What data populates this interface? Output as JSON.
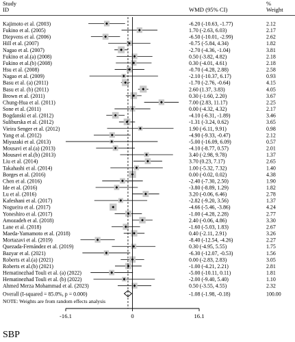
{
  "chart_data": {
    "type": "forest",
    "column_headers": {
      "study": "Study",
      "id": "ID",
      "effect": "WMD (95% CI)",
      "weight_pct": "%",
      "weight": "Weight"
    },
    "studies": [
      {
        "label": "Kajimoto et al. (2003)",
        "wmd": -6.2,
        "lo": -10.63,
        "hi": -1.77,
        "ci": "-6.20 (-10.63, -1.77)",
        "weight": "2.12",
        "w": 2.12
      },
      {
        "label": "Fukino et al. (2005)",
        "wmd": 1.7,
        "lo": -2.63,
        "hi": 6.03,
        "ci": "1.70 (-2.63, 6.03)",
        "weight": "2.17",
        "w": 2.17
      },
      {
        "label": "Diepvens et al. (2006)",
        "wmd": -6.5,
        "lo": -10.01,
        "hi": -2.99,
        "ci": "-6.50 (-10.01, -2.99)",
        "weight": "2.62",
        "w": 2.62
      },
      {
        "label": "Hill et al. (2007)",
        "wmd": -0.75,
        "lo": -5.84,
        "hi": 4.34,
        "ci": "-0.75 (-5.84, 4.34)",
        "weight": "1.82",
        "w": 1.82
      },
      {
        "label": "Nagao et al. (2007)",
        "wmd": -2.7,
        "lo": -4.36,
        "hi": -1.04,
        "ci": "-2.70 (-4.36, -1.04)",
        "weight": "3.81",
        "w": 3.81
      },
      {
        "label": "Fukino et al.(a) (2008)",
        "wmd": 0.5,
        "lo": -3.82,
        "hi": 4.82,
        "ci": "0.50 (-3.82, 4.82)",
        "weight": "2.18",
        "w": 2.18
      },
      {
        "label": "Fukino et al.(b) (2008)",
        "wmd": 0.3,
        "lo": -4.01,
        "hi": 4.61,
        "ci": "0.30 (-4.01, 4.61)",
        "weight": "2.18",
        "w": 2.18
      },
      {
        "label": "Hsu et al. (2008)",
        "wmd": -0.7,
        "lo": -4.28,
        "hi": 2.88,
        "ci": "-0.70 (-4.28, 2.88)",
        "weight": "2.58",
        "w": 2.58
      },
      {
        "label": "Nagao et al. (2009)",
        "wmd": -2.1,
        "lo": -10.37,
        "hi": 6.17,
        "ci": "-2.10 (-10.37, 6.17)",
        "weight": "0.93",
        "w": 0.93
      },
      {
        "label": "Basu et al. (a) (2011)",
        "wmd": -1.7,
        "lo": -2.76,
        "hi": -0.64,
        "ci": "-1.70 (-2.76, -0.64)",
        "weight": "4.15",
        "w": 4.15
      },
      {
        "label": "Basu et al. (b) (2011)",
        "wmd": 2.6,
        "lo": 1.37,
        "hi": 3.83,
        "ci": "2.60 (1.37, 3.83)",
        "weight": "4.05",
        "w": 4.05
      },
      {
        "label": "Brown et al. (2011)",
        "wmd": 0.3,
        "lo": -1.6,
        "hi": 2.2,
        "ci": "0.30 (-1.60, 2.20)",
        "weight": "3.67",
        "w": 3.67
      },
      {
        "label": "Chung-Hua et al. (2011)",
        "wmd": 7.0,
        "lo": 2.83,
        "hi": 11.17,
        "ci": "7.00 (2.83, 11.17)",
        "weight": "2.25",
        "w": 2.25
      },
      {
        "label": "Sone et al. (2011)",
        "wmd": 0.0,
        "lo": -4.32,
        "hi": 4.32,
        "ci": "0.00 (-4.32, 4.32)",
        "weight": "2.17",
        "w": 2.17
      },
      {
        "label": "Bogdanski et al. (2012)",
        "wmd": -4.1,
        "lo": -6.31,
        "hi": -1.89,
        "ci": "-4.10 (-6.31, -1.89)",
        "weight": "3.46",
        "w": 3.46
      },
      {
        "label": "Suliburska et al. (2012)",
        "wmd": -1.31,
        "lo": -3.24,
        "hi": 0.62,
        "ci": "-1.31 (-3.24, 0.62)",
        "weight": "3.65",
        "w": 3.65
      },
      {
        "label": "Vieira Senger et al. (2012)",
        "wmd": 1.9,
        "lo": -6.11,
        "hi": 9.91,
        "ci": "1.90 (-6.11, 9.91)",
        "weight": "0.98",
        "w": 0.98
      },
      {
        "label": "Yang et al. (2012)",
        "wmd": -4.9,
        "lo": -9.33,
        "hi": -0.47,
        "ci": "-4.90 (-9.33, -0.47)",
        "weight": "2.12",
        "w": 2.12
      },
      {
        "label": "Miyazaki et al. (2013)",
        "wmd": -5.0,
        "lo": -16.09,
        "hi": 6.09,
        "ci": "-5.00 (-16.09, 6.09)",
        "weight": "0.57",
        "w": 0.57
      },
      {
        "label": "Mousavi et al.(a) (2013)",
        "wmd": -4.1,
        "lo": -8.77,
        "hi": 0.57,
        "ci": "-4.10 (-8.77, 0.57)",
        "weight": "2.01",
        "w": 2.01
      },
      {
        "label": "Mousavi et al.(b) (2013)",
        "wmd": 3.4,
        "lo": -2.98,
        "hi": 9.78,
        "ci": "3.40 (-2.98, 9.78)",
        "weight": "1.37",
        "w": 1.37
      },
      {
        "label": "Liu et al. (2014)",
        "wmd": 3.7,
        "lo": 0.23,
        "hi": 7.17,
        "ci": "3.70 (0.23, 7.17)",
        "weight": "2.65",
        "w": 2.65
      },
      {
        "label": "Takahashi et al. (2014)",
        "wmd": 1.0,
        "lo": -5.32,
        "hi": 7.32,
        "ci": "1.00 (-5.32, 7.32)",
        "weight": "1.40",
        "w": 1.4
      },
      {
        "label": "Borges et al. (2016)",
        "wmd": 0.0,
        "lo": -0.02,
        "hi": 0.02,
        "ci": "0.00 (-0.02, 0.02)",
        "weight": "4.38",
        "w": 4.38
      },
      {
        "label": "Chen et al. (2016)",
        "wmd": -2.4,
        "lo": -7.3,
        "hi": 2.5,
        "ci": "-2.40 (-7.30, 2.50)",
        "weight": "1.90",
        "w": 1.9
      },
      {
        "label": "Ide et al. (2016)",
        "wmd": -3.8,
        "lo": -8.89,
        "hi": 1.29,
        "ci": "-3.80 (-8.89, 1.29)",
        "weight": "1.82",
        "w": 1.82
      },
      {
        "label": "Lu et al. (2016)",
        "wmd": 3.2,
        "lo": -0.06,
        "hi": 6.46,
        "ci": "3.20 (-0.06, 6.46)",
        "weight": "2.78",
        "w": 2.78
      },
      {
        "label": "Kafeshani et al. (2017)",
        "wmd": -2.82,
        "lo": -9.2,
        "hi": 3.56,
        "ci": "-2.82 (-9.20, 3.56)",
        "weight": "1.37",
        "w": 1.37
      },
      {
        "label": "Nogueira et al. (2017)",
        "wmd": -4.66,
        "lo": -5.46,
        "hi": -3.86,
        "ci": "-4.66 (-5.46, -3.86)",
        "weight": "4.24",
        "w": 4.24
      },
      {
        "label": "Yoneshiro et al. (2017)",
        "wmd": -1.0,
        "lo": -4.28,
        "hi": 2.28,
        "ci": "-1.00 (-4.28, 2.28)",
        "weight": "2.77",
        "w": 2.77
      },
      {
        "label": "Amozadeh et al. (2018)",
        "wmd": 2.4,
        "lo": -0.06,
        "hi": 4.86,
        "ci": "2.40 (-0.06, 4.86)",
        "weight": "3.30",
        "w": 3.3
      },
      {
        "label": "Lane et al. (2018)",
        "wmd": -1.6,
        "lo": -5.03,
        "hi": 1.83,
        "ci": "-1.60 (-5.03, 1.83)",
        "weight": "2.67",
        "w": 2.67
      },
      {
        "label": "Maeda-Yamamoto et al. (2018)",
        "wmd": 0.4,
        "lo": -2.11,
        "hi": 2.91,
        "ci": "0.40 (-2.11, 2.91)",
        "weight": "3.26",
        "w": 3.26
      },
      {
        "label": "Mortazavi et al. (2019)",
        "wmd": -8.4,
        "lo": -12.54,
        "hi": -4.26,
        "ci": "-8.40 (-12.54, -4.26)",
        "weight": "2.27",
        "w": 2.27
      },
      {
        "label": "Quezada-Fernández et al. (2019)",
        "wmd": 0.3,
        "lo": -4.95,
        "hi": 5.55,
        "ci": "0.30 (-4.95, 5.55)",
        "weight": "1.75",
        "w": 1.75
      },
      {
        "label": "Bazyar et al. (2021)",
        "wmd": -6.3,
        "lo": -12.07,
        "hi": -0.53,
        "ci": "-6.30 (-12.07, -0.53)",
        "weight": "1.56",
        "w": 1.56
      },
      {
        "label": "Roberts et al.(a) (2021)",
        "wmd": 0.0,
        "lo": -2.83,
        "hi": 2.83,
        "ci": "0.00 (-2.83, 2.83)",
        "weight": "3.05",
        "w": 3.05
      },
      {
        "label": "Roberts et al.(b) (2021)",
        "wmd": -1.0,
        "lo": -4.21,
        "hi": 2.21,
        "ci": "-1.00 (-4.21, 2.21)",
        "weight": "2.81",
        "w": 2.81
      },
      {
        "label": "Hematinezhad Touli et al. (a) (2022)",
        "wmd": -5.0,
        "lo": -10.11,
        "hi": 0.11,
        "ci": "-5.00 (-10.11, 0.11)",
        "weight": "1.81",
        "w": 1.81
      },
      {
        "label": "Hematinezhad Touli et al. (b) (2022)",
        "wmd": -2.0,
        "lo": -9.4,
        "hi": 5.4,
        "ci": "-2.00 (-9.40, 5.40)",
        "weight": "1.10",
        "w": 1.1
      },
      {
        "label": "Ahmed Merza Mohammad et al. (2023)",
        "wmd": 0.5,
        "lo": -3.55,
        "hi": 4.55,
        "ci": "0.50 (-3.55, 4.55)",
        "weight": "2.32",
        "w": 2.32
      }
    ],
    "overall": {
      "label": "Overall  (I-squared = 85.0%, p = 0.000)",
      "wmd": -1.08,
      "lo": -1.98,
      "hi": -0.18,
      "ci": "-1.08 (-1.98, -0.18)",
      "weight": "100.00"
    },
    "note": "NOTE: Weights are from random effects analysis",
    "x_ticks": [
      {
        "value": -16.1,
        "label": "-16.1"
      },
      {
        "value": 0,
        "label": "0"
      },
      {
        "value": 16.1,
        "label": "16.1"
      }
    ],
    "xlim": [
      -16.1,
      16.1
    ],
    "outcome_label": "SBP"
  }
}
